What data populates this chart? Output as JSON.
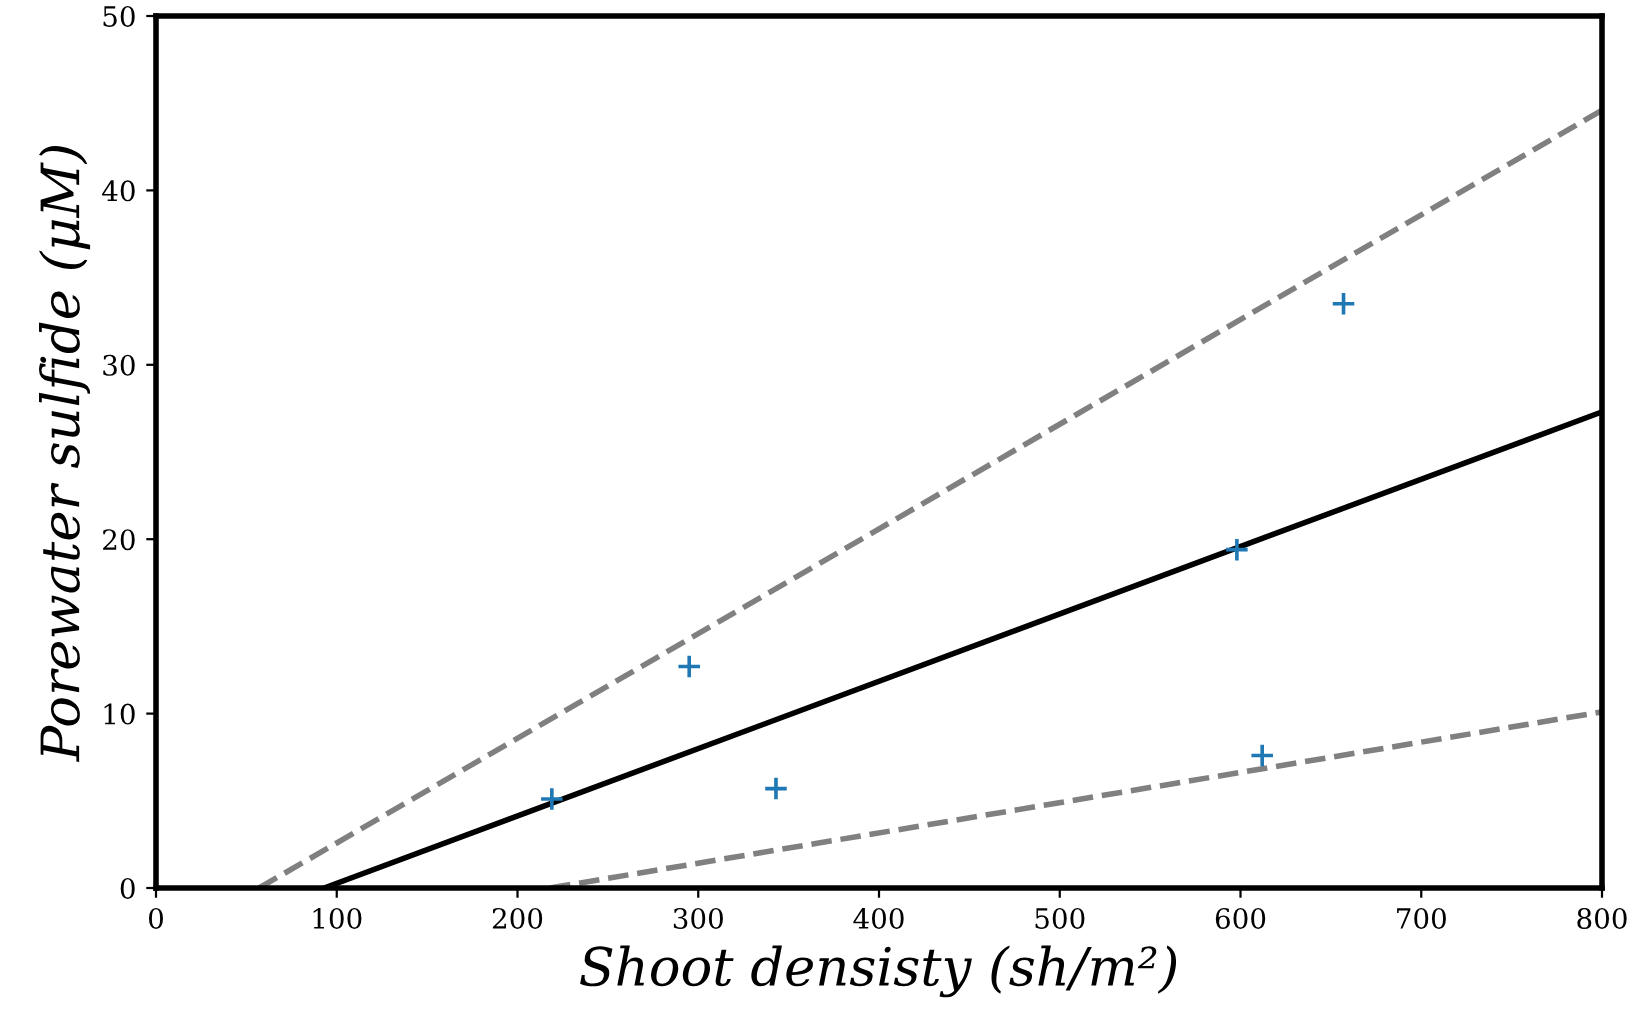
{
  "chart_data": {
    "type": "scatter",
    "xlabel": "Shoot densisty (sh/m²)",
    "ylabel": "Porewater sulfide (μM)",
    "xlim": [
      0,
      800
    ],
    "ylim": [
      0,
      50
    ],
    "xticks": [
      0,
      100,
      200,
      300,
      400,
      500,
      600,
      700,
      800
    ],
    "yticks": [
      0,
      10,
      20,
      30,
      40,
      50
    ],
    "grid": false,
    "series": [
      {
        "marker": "cross",
        "color": "#1f77b4",
        "x": [
          219,
          295,
          343,
          598,
          612,
          657
        ],
        "values": [
          5.1,
          12.7,
          5.7,
          19.4,
          7.6,
          33.5
        ]
      },
      {
        "type": "line",
        "line_style": "solid",
        "color": "#000000",
        "x": [
          93,
          800
        ],
        "values": [
          0,
          27.3
        ]
      },
      {
        "type": "line",
        "line_style": "dashed",
        "color": "#808080",
        "x": [
          57,
          800
        ],
        "values": [
          0,
          44.6
        ]
      },
      {
        "type": "line",
        "line_style": "dashed",
        "color": "#808080",
        "x": [
          218,
          800
        ],
        "values": [
          0,
          10.1
        ]
      }
    ]
  }
}
